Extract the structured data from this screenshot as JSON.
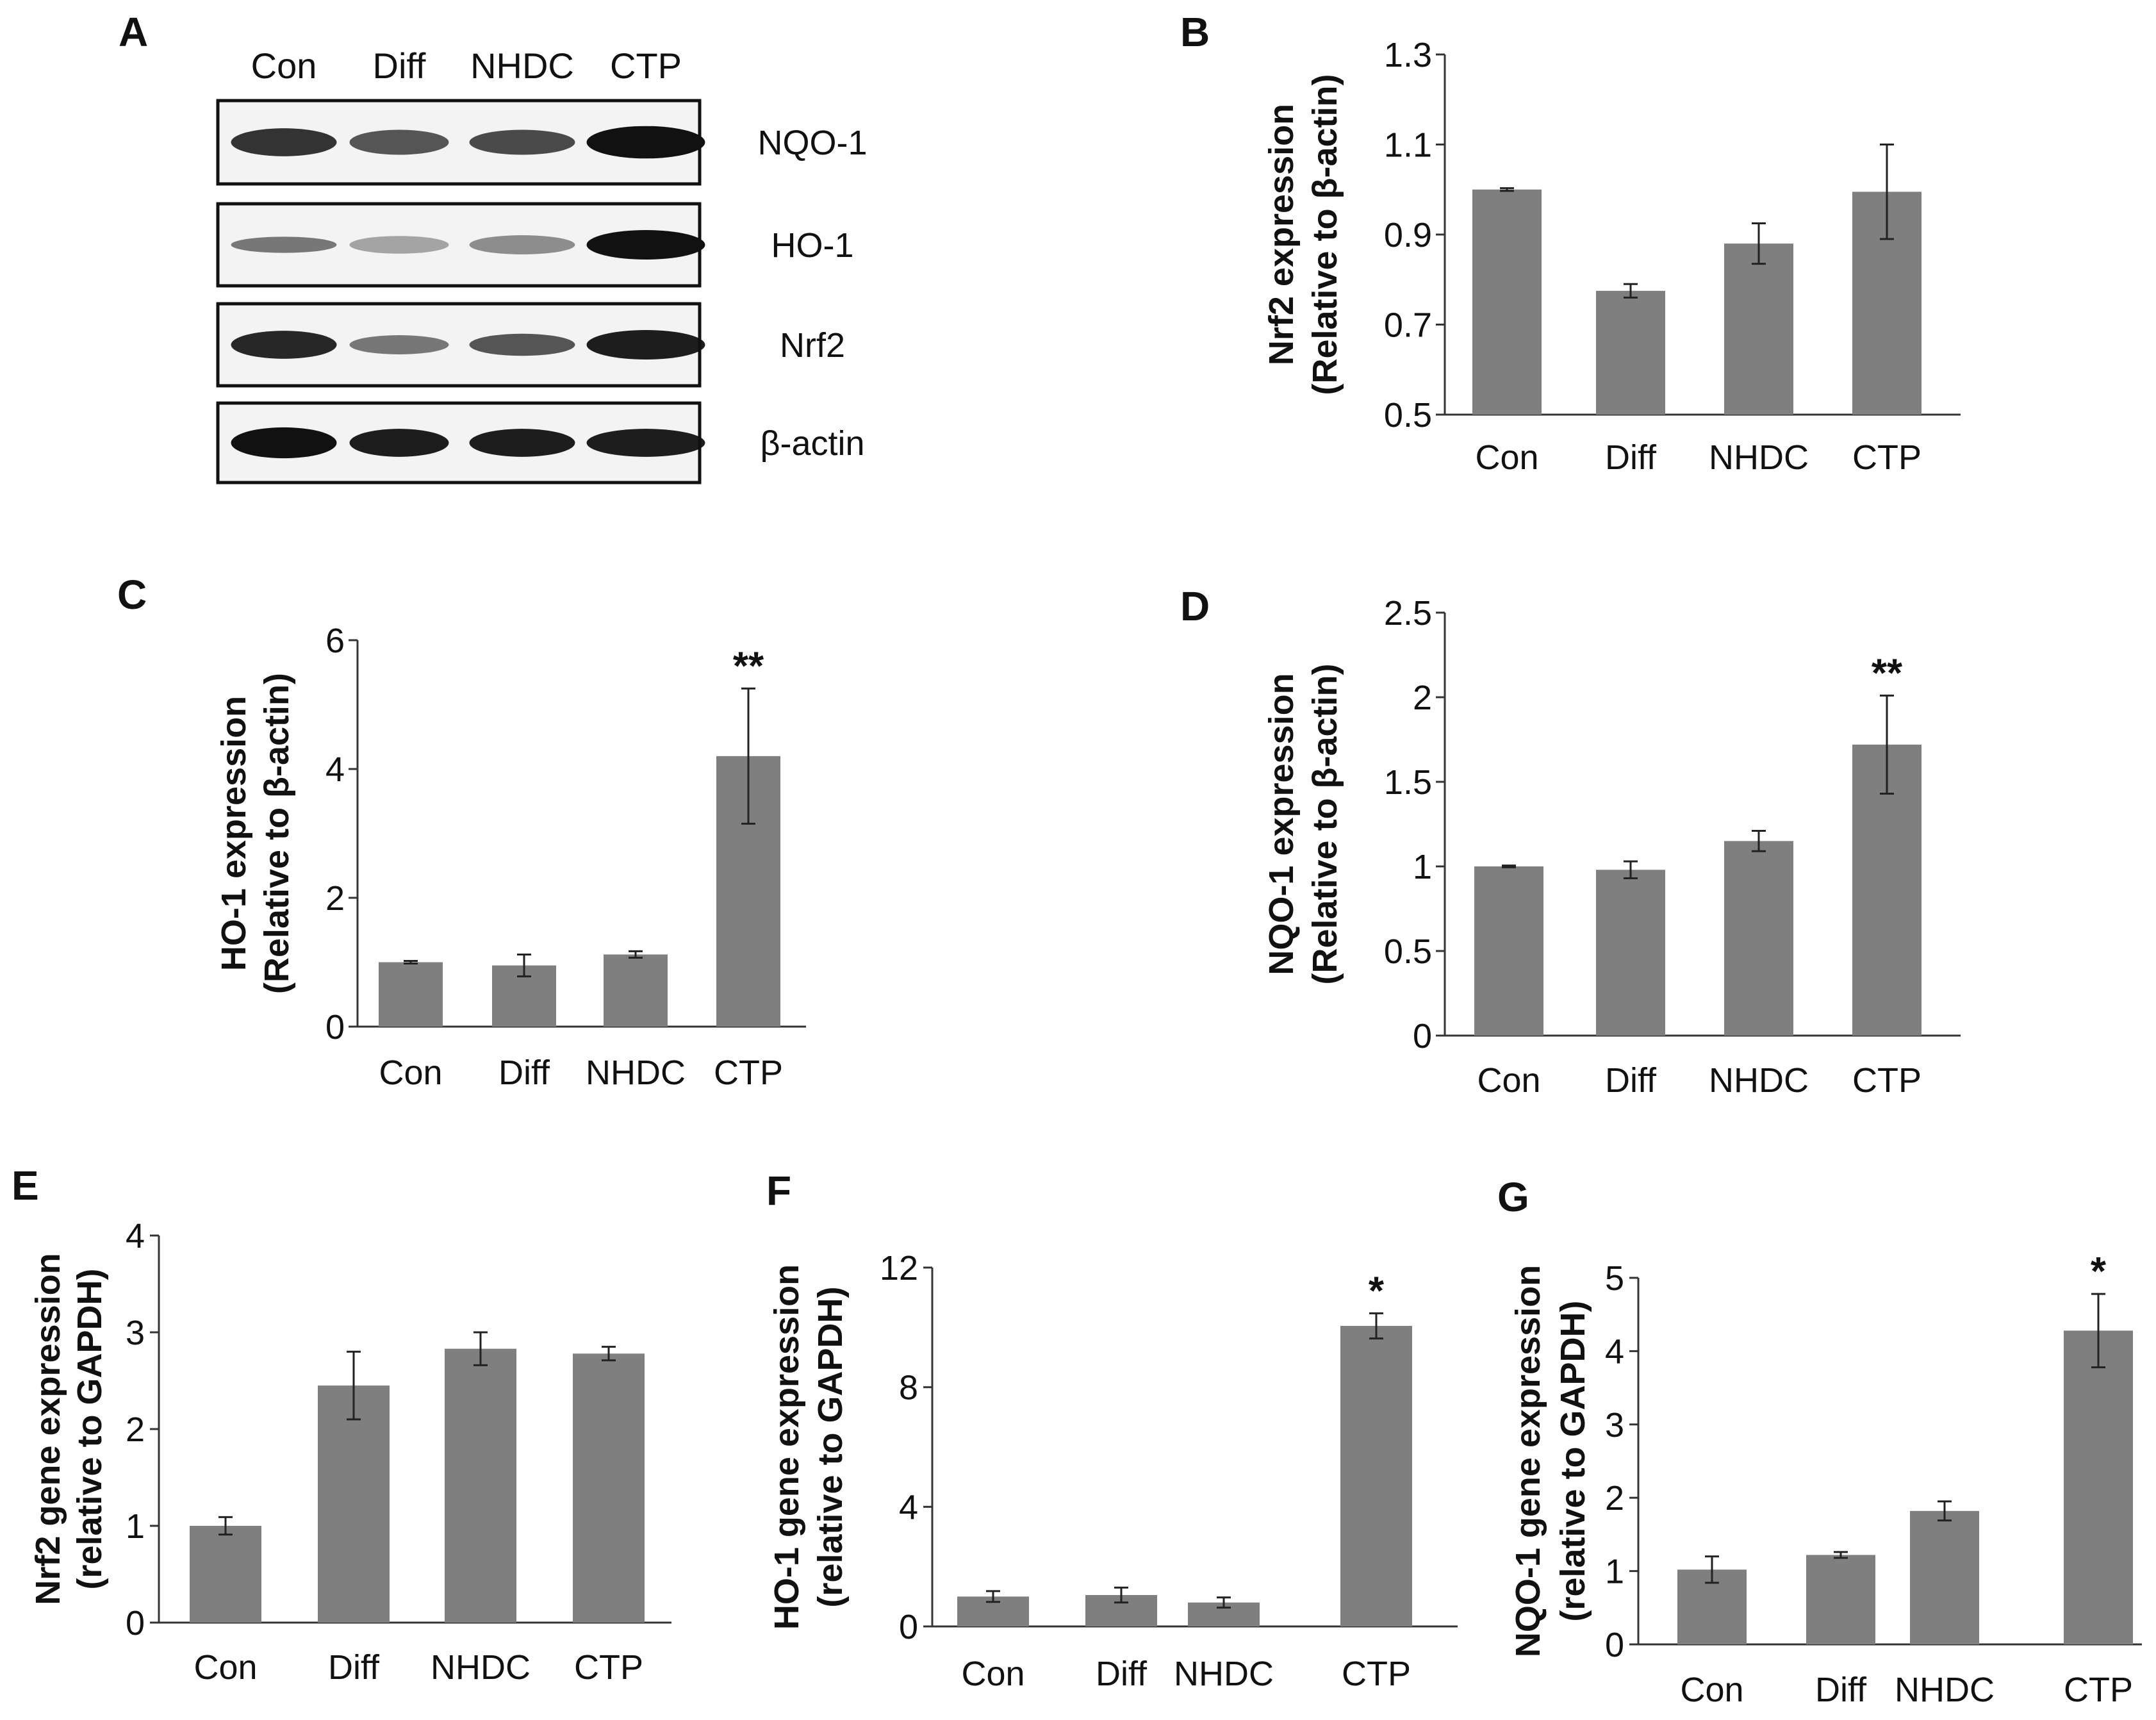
{
  "blot": {
    "letter": "A",
    "lanes": [
      "Con",
      "Diff",
      "NHDC",
      "CTP"
    ],
    "rows": [
      {
        "label": "NQO-1",
        "intensity": [
          0.85,
          0.7,
          0.75,
          1.0
        ],
        "thickness": [
          0.95,
          0.85,
          0.85,
          1.1
        ],
        "faint": false
      },
      {
        "label": "HO-1",
        "intensity": [
          0.55,
          0.35,
          0.45,
          1.0
        ],
        "thickness": [
          0.55,
          0.6,
          0.65,
          1.0
        ],
        "faint": true
      },
      {
        "label": "Nrf2",
        "intensity": [
          0.9,
          0.55,
          0.7,
          0.95
        ],
        "thickness": [
          0.95,
          0.65,
          0.75,
          1.0
        ],
        "faint": false
      },
      {
        "label": "β-actin",
        "intensity": [
          1.0,
          0.95,
          0.95,
          0.95
        ],
        "thickness": [
          1.05,
          0.95,
          0.95,
          0.95
        ],
        "faint": false
      }
    ]
  },
  "chart_data": [
    {
      "panel": "B",
      "type": "bar",
      "categories": [
        "Con",
        "Diff",
        "NHDC",
        "CTP"
      ],
      "values": [
        1.0,
        0.775,
        0.88,
        0.995
      ],
      "errors": [
        0.003,
        0.015,
        0.045,
        0.105
      ],
      "significance": [
        "",
        "",
        "",
        ""
      ],
      "ylabel": [
        "Nrf2 expression",
        "(Relative to β-actin)"
      ],
      "ylim": [
        0.5,
        1.3
      ],
      "yticks": [
        0.5,
        0.7,
        0.9,
        1.1,
        1.3
      ],
      "ytick_labels": [
        "0.5",
        "0.7",
        "0.9",
        "1.1",
        "1.3"
      ]
    },
    {
      "panel": "C",
      "type": "bar",
      "categories": [
        "Con",
        "Diff",
        "NHDC",
        "CTP"
      ],
      "values": [
        1.0,
        0.95,
        1.12,
        4.2
      ],
      "errors": [
        0.02,
        0.17,
        0.05,
        1.05
      ],
      "significance": [
        "",
        "",
        "",
        "**"
      ],
      "ylabel": [
        "HO-1 expression",
        "(Relative to β-actin)"
      ],
      "ylim": [
        0,
        6
      ],
      "yticks": [
        0,
        2,
        4,
        6
      ],
      "ytick_labels": [
        "0",
        "2",
        "4",
        "6"
      ]
    },
    {
      "panel": "D",
      "type": "bar",
      "categories": [
        "Con",
        "Diff",
        "NHDC",
        "CTP"
      ],
      "values": [
        1.0,
        0.98,
        1.15,
        1.72
      ],
      "errors": [
        0.005,
        0.05,
        0.06,
        0.29
      ],
      "significance": [
        "",
        "",
        "",
        "**"
      ],
      "ylabel": [
        "NQO-1 expression",
        "(Relative to β-actin)"
      ],
      "ylim": [
        0,
        2.5
      ],
      "yticks": [
        0,
        0.5,
        1,
        1.5,
        2,
        2.5
      ],
      "ytick_labels": [
        "0",
        "0.5",
        "1",
        "1.5",
        "2",
        "2.5"
      ]
    },
    {
      "panel": "E",
      "type": "bar",
      "categories": [
        "Con",
        "Diff",
        "NHDC",
        "CTP"
      ],
      "values": [
        1.0,
        2.45,
        2.83,
        2.78
      ],
      "errors": [
        0.09,
        0.35,
        0.17,
        0.07
      ],
      "significance": [
        "",
        "",
        "",
        ""
      ],
      "ylabel": [
        "Nrf2 gene expression",
        "(relative to GAPDH)"
      ],
      "ylim": [
        0,
        4
      ],
      "yticks": [
        0,
        1,
        2,
        3,
        4
      ],
      "ytick_labels": [
        "0",
        "1",
        "2",
        "3",
        "4"
      ]
    },
    {
      "panel": "F",
      "type": "bar",
      "categories": [
        "Con",
        "Diff",
        "NHDC",
        "CTP"
      ],
      "values": [
        1.0,
        1.05,
        0.8,
        10.05
      ],
      "errors": [
        0.18,
        0.25,
        0.17,
        0.42
      ],
      "significance": [
        "",
        "",
        "",
        "*"
      ],
      "ylabel": [
        "HO-1 gene expression",
        "(relative to GAPDH)"
      ],
      "ylim": [
        0,
        12
      ],
      "yticks": [
        0,
        4,
        8,
        12
      ],
      "ytick_labels": [
        "0",
        "4",
        "8",
        "12"
      ]
    },
    {
      "panel": "G",
      "type": "bar",
      "categories": [
        "Con",
        "Diff",
        "NHDC",
        "CTP"
      ],
      "values": [
        1.02,
        1.22,
        1.82,
        4.28
      ],
      "errors": [
        0.18,
        0.04,
        0.13,
        0.5
      ],
      "significance": [
        "",
        "",
        "",
        "*"
      ],
      "ylabel": [
        "NQO-1 gene expression",
        "(relative to GAPDH)"
      ],
      "ylim": [
        0,
        5
      ],
      "yticks": [
        0,
        1,
        2,
        3,
        4,
        5
      ],
      "ytick_labels": [
        "0",
        "1",
        "2",
        "3",
        "4",
        "5"
      ]
    }
  ],
  "colors": {
    "bar": "#7f7f7f",
    "axis": "#333333",
    "band": "#111111",
    "text": "#111111"
  }
}
